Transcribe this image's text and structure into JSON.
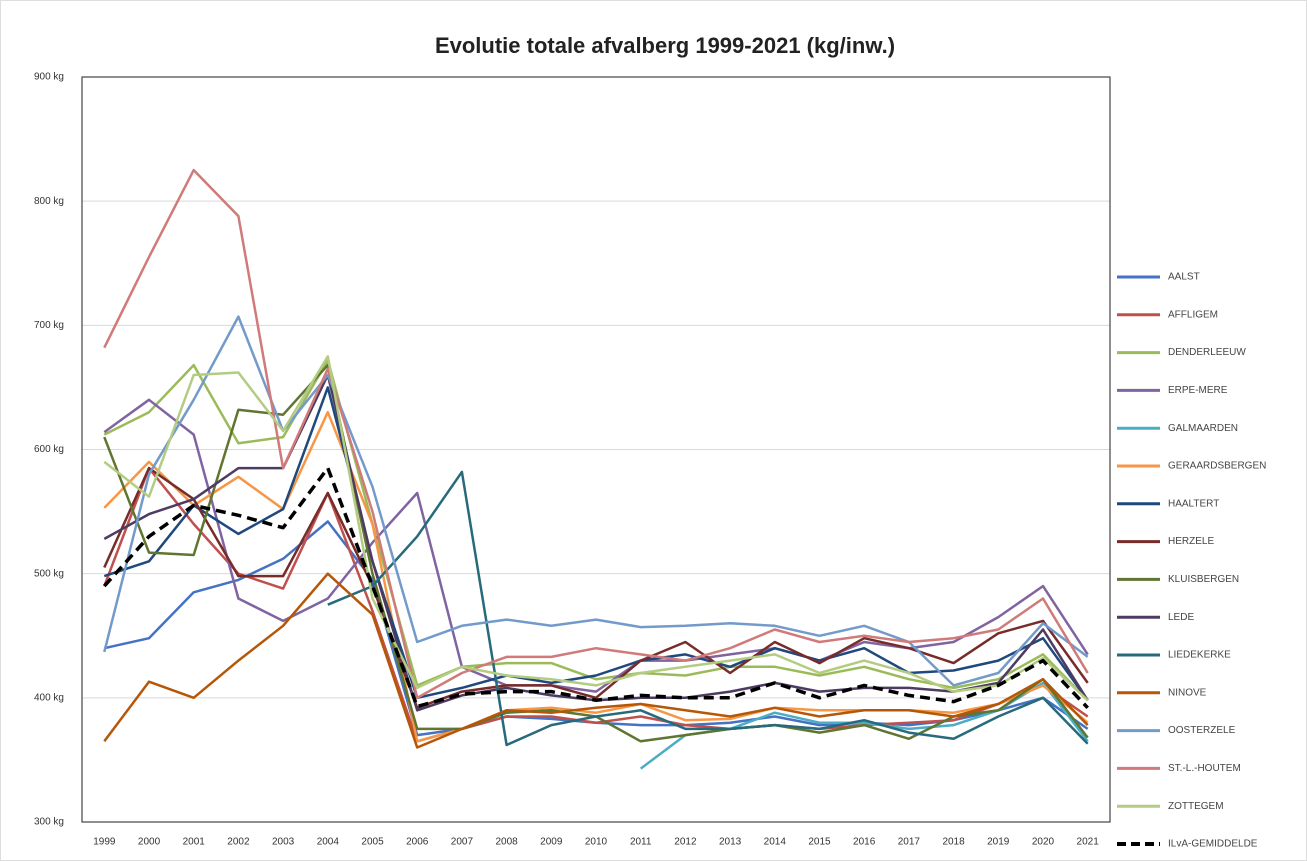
{
  "chart_data": {
    "type": "line",
    "title": "Evolutie totale afvalberg 1999-2021 (kg/inw.)",
    "categories": [
      "1999",
      "2000",
      "2001",
      "2002",
      "2003",
      "2004",
      "2005",
      "2006",
      "2007",
      "2008",
      "2009",
      "2010",
      "2011",
      "2012",
      "2013",
      "2014",
      "2015",
      "2016",
      "2017",
      "2018",
      "2019",
      "2020",
      "2021"
    ],
    "ylim": [
      300,
      900
    ],
    "yticks": [
      {
        "value": 300,
        "label": "300 kg"
      },
      {
        "value": 400,
        "label": "400 kg"
      },
      {
        "value": 500,
        "label": "500 kg"
      },
      {
        "value": 600,
        "label": "600 kg"
      },
      {
        "value": 700,
        "label": "700 kg"
      },
      {
        "value": 800,
        "label": "800 kg"
      },
      {
        "value": 900,
        "label": "900 kg"
      }
    ],
    "grid": true,
    "legend": "right",
    "series": [
      {
        "name": "AALST",
        "color": "#4472c4",
        "values": [
          440,
          448,
          485,
          495,
          512,
          542,
          495,
          370,
          375,
          385,
          383,
          380,
          378,
          378,
          380,
          385,
          378,
          380,
          378,
          382,
          390,
          400,
          375
        ]
      },
      {
        "name": "AFFLIGEM",
        "color": "#c0504d",
        "values": [
          490,
          585,
          540,
          500,
          488,
          565,
          470,
          365,
          375,
          385,
          385,
          380,
          385,
          378,
          375,
          378,
          375,
          378,
          380,
          382,
          395,
          410,
          385
        ]
      },
      {
        "name": "DENDERLEEUW",
        "color": "#9bbb59",
        "values": [
          612,
          630,
          668,
          605,
          610,
          672,
          540,
          410,
          425,
          428,
          428,
          415,
          420,
          418,
          425,
          425,
          418,
          425,
          415,
          408,
          415,
          435,
          398
        ]
      },
      {
        "name": "ERPE-MERE",
        "color": "#8064a2",
        "values": [
          614,
          640,
          612,
          480,
          462,
          480,
          525,
          565,
          425,
          410,
          410,
          405,
          430,
          430,
          435,
          440,
          430,
          445,
          440,
          445,
          465,
          490,
          435
        ]
      },
      {
        "name": "GALMAARDEN",
        "color": "#4bacc6",
        "values": [
          null,
          null,
          null,
          null,
          null,
          null,
          null,
          null,
          null,
          null,
          null,
          null,
          343,
          370,
          375,
          388,
          380,
          380,
          375,
          378,
          390,
          412,
          365
        ]
      },
      {
        "name": "GERAARDSBERGEN",
        "color": "#f79646",
        "values": [
          553,
          590,
          555,
          578,
          552,
          630,
          540,
          365,
          375,
          390,
          392,
          388,
          395,
          382,
          383,
          392,
          390,
          390,
          390,
          388,
          395,
          410,
          380
        ]
      },
      {
        "name": "HAALTERT",
        "color": "#1f497d",
        "values": [
          498,
          510,
          555,
          532,
          552,
          650,
          510,
          400,
          408,
          418,
          412,
          418,
          430,
          435,
          425,
          440,
          430,
          440,
          420,
          422,
          430,
          448,
          398
        ]
      },
      {
        "name": "HERZELE",
        "color": "#772c2a",
        "values": [
          505,
          585,
          560,
          498,
          498,
          565,
          490,
          392,
          405,
          410,
          410,
          400,
          430,
          445,
          420,
          445,
          428,
          448,
          440,
          428,
          452,
          462,
          412
        ]
      },
      {
        "name": "KLUISBERGEN",
        "color": "#5f7530",
        "values": [
          610,
          517,
          515,
          632,
          628,
          668,
          500,
          375,
          375,
          388,
          390,
          385,
          365,
          370,
          375,
          378,
          372,
          378,
          367,
          385,
          390,
          415,
          368
        ]
      },
      {
        "name": "LEDE",
        "color": "#4d3b62",
        "values": [
          528,
          548,
          560,
          585,
          585,
          660,
          510,
          390,
          402,
          408,
          402,
          398,
          400,
          400,
          405,
          412,
          405,
          408,
          408,
          405,
          412,
          455,
          398
        ]
      },
      {
        "name": "LIEDEKERKE",
        "color": "#276a7c",
        "values": [
          null,
          null,
          null,
          null,
          null,
          475,
          490,
          530,
          582,
          362,
          378,
          385,
          390,
          375,
          375,
          378,
          375,
          382,
          372,
          367,
          385,
          400,
          363
        ]
      },
      {
        "name": "NINOVE",
        "color": "#b65708",
        "values": [
          365,
          413,
          400,
          430,
          458,
          500,
          467,
          360,
          375,
          390,
          388,
          392,
          395,
          390,
          385,
          392,
          385,
          390,
          390,
          385,
          395,
          415,
          378
        ]
      },
      {
        "name": "OOSTERZELE",
        "color": "#729aca",
        "values": [
          437,
          580,
          640,
          707,
          615,
          660,
          570,
          445,
          458,
          463,
          458,
          463,
          457,
          458,
          460,
          458,
          450,
          458,
          445,
          410,
          420,
          460,
          433
        ]
      },
      {
        "name": "ST.-L.-HOUTEM",
        "color": "#d07a79",
        "values": [
          682,
          755,
          825,
          788,
          585,
          665,
          550,
          400,
          420,
          433,
          433,
          440,
          435,
          430,
          440,
          455,
          445,
          450,
          445,
          448,
          455,
          480,
          420
        ]
      },
      {
        "name": "ZOTTEGEM",
        "color": "#b3cc82",
        "values": [
          590,
          562,
          660,
          662,
          615,
          675,
          480,
          408,
          425,
          418,
          415,
          410,
          420,
          425,
          430,
          435,
          420,
          430,
          420,
          405,
          410,
          432,
          398
        ]
      },
      {
        "name": "ILvA-GEMIDDELDE",
        "color": "#000000",
        "dashed": true,
        "values": [
          490,
          530,
          555,
          547,
          537,
          585,
          490,
          393,
          403,
          405,
          405,
          398,
          402,
          400,
          400,
          412,
          400,
          410,
          402,
          397,
          410,
          430,
          392
        ]
      }
    ]
  }
}
